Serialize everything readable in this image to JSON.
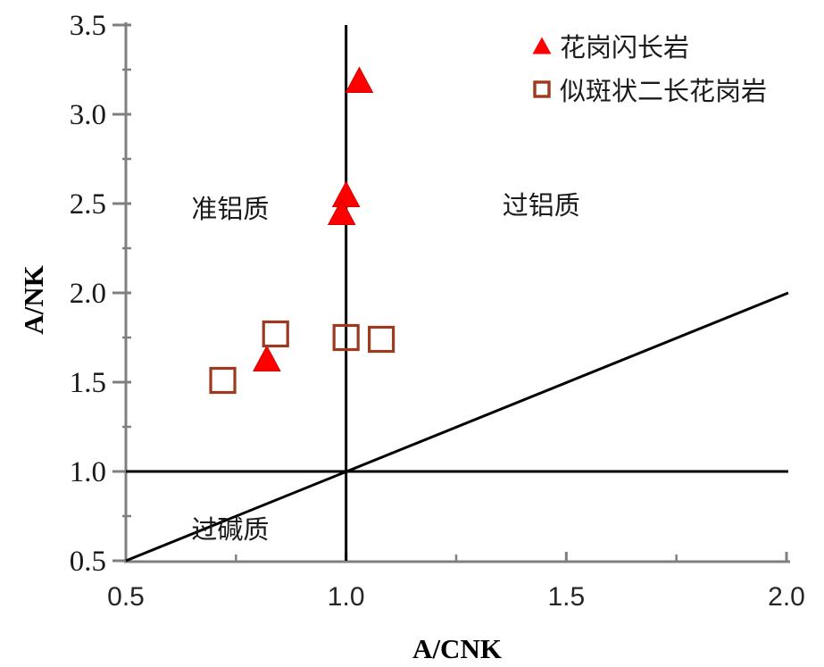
{
  "chart_data": {
    "type": "scatter",
    "title": "",
    "xlabel": "A/CNK",
    "ylabel": "A/NK",
    "xlim": [
      0.5,
      2.0
    ],
    "ylim": [
      0.5,
      3.5
    ],
    "x_ticks": [
      "0.5",
      "1.0",
      "1.5",
      "2.0"
    ],
    "y_ticks": [
      "0.5",
      "1.0",
      "1.5",
      "2.0",
      "2.5",
      "3.0",
      "3.5"
    ],
    "x_minor_ticks": [
      0.75,
      1.25,
      1.75
    ],
    "y_minor_ticks": [
      0.75,
      1.25,
      1.75,
      2.25,
      2.75,
      3.25
    ],
    "grid": false,
    "legend_position": "top-right",
    "axis_color": "#7f7f7f",
    "background_color": "#ffffff",
    "series": [
      {
        "name": "花岗闪长岩",
        "slug": "granodiorite",
        "marker": "triangle-filled",
        "color": "#ff0000",
        "edge_color": "#d40000",
        "points": [
          [
            1.03,
            3.19
          ],
          [
            1.0,
            2.55
          ],
          [
            0.99,
            2.45
          ],
          [
            0.82,
            1.63
          ]
        ]
      },
      {
        "name": "似斑状二长花岗岩",
        "slug": "porphyritic-monzogranite",
        "marker": "square-open",
        "color": "#9b3a1e",
        "points": [
          [
            0.72,
            1.51
          ],
          [
            0.84,
            1.77
          ],
          [
            1.0,
            1.75
          ],
          [
            1.08,
            1.74
          ]
        ]
      }
    ],
    "reference_lines": [
      {
        "id": "vertical-boundary",
        "orientation": "vertical",
        "x": 1.0,
        "color": "#000000"
      },
      {
        "id": "horizontal-boundary",
        "orientation": "horizontal",
        "y": 1.0,
        "color": "#000000"
      },
      {
        "id": "diagonal-boundary",
        "orientation": "diagonal",
        "from": [
          0.5,
          0.5
        ],
        "to": [
          2.0,
          2.0
        ],
        "color": "#000000"
      }
    ],
    "annotations": [
      {
        "text": "准铝质",
        "x": 0.737,
        "y": 2.48
      },
      {
        "text": "过铝质",
        "x": 1.443,
        "y": 2.5
      },
      {
        "text": "过碱质",
        "x": 0.737,
        "y": 0.685
      }
    ]
  }
}
